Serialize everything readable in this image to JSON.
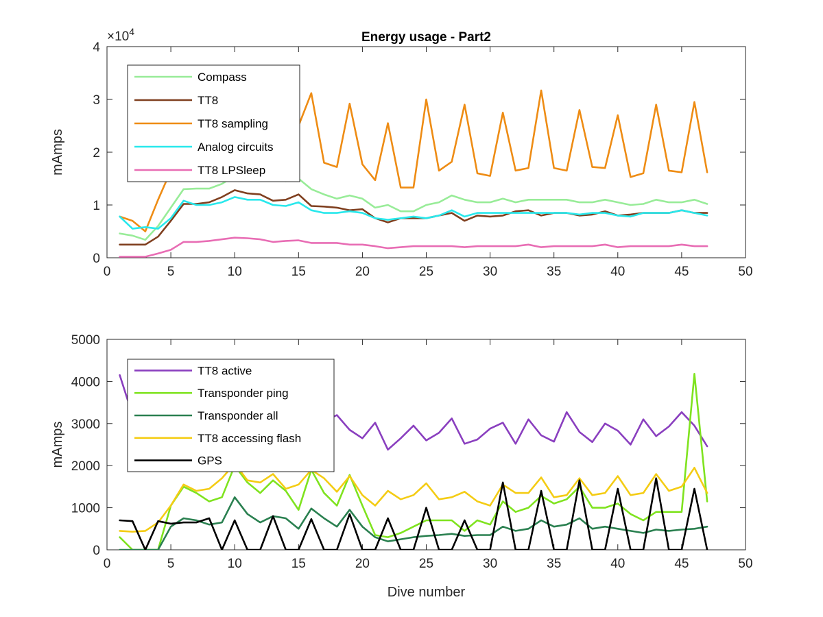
{
  "chart_data": [
    {
      "type": "line",
      "title": "Energy usage - Part2",
      "xlabel": "",
      "ylabel": "mAmps",
      "y_exponent_label": "×10",
      "y_exponent_power": "4",
      "xlim": [
        0,
        50
      ],
      "ylim": [
        0,
        4
      ],
      "xticks": [
        "0",
        "5",
        "10",
        "15",
        "20",
        "25",
        "30",
        "35",
        "40",
        "45",
        "50"
      ],
      "yticks": [
        "0",
        "1",
        "2",
        "3",
        "4"
      ],
      "grid": false,
      "legend_position": "top-left",
      "x": [
        1,
        2,
        3,
        4,
        5,
        6,
        7,
        8,
        9,
        10,
        11,
        12,
        13,
        14,
        15,
        16,
        17,
        18,
        19,
        20,
        21,
        22,
        23,
        24,
        25,
        26,
        27,
        28,
        29,
        30,
        31,
        32,
        33,
        34,
        35,
        36,
        37,
        38,
        39,
        40,
        41,
        42,
        43,
        44,
        45,
        46,
        47
      ],
      "series": [
        {
          "name": "Compass",
          "color": "#98ec98",
          "values": [
            0.46,
            0.42,
            0.34,
            0.6,
            0.95,
            1.3,
            1.31,
            1.31,
            1.4,
            1.55,
            1.5,
            1.55,
            1.5,
            1.45,
            1.5,
            1.3,
            1.2,
            1.12,
            1.18,
            1.12,
            0.95,
            1.0,
            0.88,
            0.88,
            1.0,
            1.05,
            1.18,
            1.1,
            1.05,
            1.05,
            1.12,
            1.05,
            1.1,
            1.1,
            1.1,
            1.1,
            1.05,
            1.05,
            1.1,
            1.05,
            1.0,
            1.02,
            1.1,
            1.05,
            1.05,
            1.1,
            1.02
          ]
        },
        {
          "name": "TT8",
          "color": "#7f3f1f",
          "values": [
            0.25,
            0.25,
            0.25,
            0.4,
            0.7,
            1.02,
            1.02,
            1.05,
            1.15,
            1.28,
            1.22,
            1.2,
            1.08,
            1.1,
            1.2,
            0.98,
            0.97,
            0.95,
            0.9,
            0.92,
            0.75,
            0.67,
            0.75,
            0.75,
            0.75,
            0.8,
            0.85,
            0.7,
            0.8,
            0.78,
            0.8,
            0.88,
            0.9,
            0.8,
            0.85,
            0.85,
            0.8,
            0.82,
            0.88,
            0.8,
            0.82,
            0.85,
            0.85,
            0.85,
            0.9,
            0.85,
            0.85
          ]
        },
        {
          "name": "TT8 sampling",
          "color": "#ee8c14",
          "values": [
            0.78,
            0.7,
            0.5,
            1.1,
            1.65,
            1.92,
            2.0,
            2.05,
            2.1,
            2.25,
            2.3,
            2.3,
            2.15,
            2.2,
            2.5,
            3.12,
            1.8,
            1.72,
            2.92,
            1.77,
            1.47,
            2.55,
            1.33,
            1.33,
            3.0,
            1.65,
            1.82,
            2.9,
            1.6,
            1.55,
            2.75,
            1.65,
            1.7,
            3.17,
            1.7,
            1.65,
            2.8,
            1.72,
            1.7,
            2.7,
            1.53,
            1.6,
            2.9,
            1.65,
            1.62,
            2.95,
            1.62
          ]
        },
        {
          "name": "Analog circuits",
          "color": "#29e8ec",
          "values": [
            0.78,
            0.55,
            0.58,
            0.55,
            0.75,
            1.08,
            1.0,
            1.0,
            1.05,
            1.15,
            1.1,
            1.1,
            1.0,
            0.98,
            1.05,
            0.9,
            0.85,
            0.85,
            0.88,
            0.85,
            0.75,
            0.72,
            0.75,
            0.78,
            0.75,
            0.8,
            0.9,
            0.78,
            0.85,
            0.85,
            0.85,
            0.85,
            0.85,
            0.85,
            0.85,
            0.85,
            0.82,
            0.85,
            0.85,
            0.8,
            0.78,
            0.85,
            0.85,
            0.85,
            0.9,
            0.85,
            0.8
          ]
        },
        {
          "name": "TT8 LPSleep",
          "color": "#e86db4",
          "values": [
            0.02,
            0.02,
            0.02,
            0.08,
            0.15,
            0.3,
            0.3,
            0.32,
            0.35,
            0.38,
            0.37,
            0.35,
            0.3,
            0.32,
            0.33,
            0.28,
            0.28,
            0.28,
            0.25,
            0.25,
            0.22,
            0.18,
            0.2,
            0.22,
            0.22,
            0.22,
            0.22,
            0.2,
            0.22,
            0.22,
            0.22,
            0.22,
            0.25,
            0.2,
            0.22,
            0.22,
            0.22,
            0.22,
            0.25,
            0.2,
            0.22,
            0.22,
            0.22,
            0.22,
            0.25,
            0.22,
            0.22
          ]
        }
      ]
    },
    {
      "type": "line",
      "title": "",
      "xlabel": "Dive number",
      "ylabel": "mAmps",
      "xlim": [
        0,
        50
      ],
      "ylim": [
        0,
        5000
      ],
      "xticks": [
        "0",
        "5",
        "10",
        "15",
        "20",
        "25",
        "30",
        "35",
        "40",
        "45",
        "50"
      ],
      "yticks": [
        "0",
        "1000",
        "2000",
        "3000",
        "4000",
        "5000"
      ],
      "grid": false,
      "legend_position": "top-left",
      "x": [
        1,
        2,
        3,
        4,
        5,
        6,
        7,
        8,
        9,
        10,
        11,
        12,
        13,
        14,
        15,
        16,
        17,
        18,
        19,
        20,
        21,
        22,
        23,
        24,
        25,
        26,
        27,
        28,
        29,
        30,
        31,
        32,
        33,
        34,
        35,
        36,
        37,
        38,
        39,
        40,
        41,
        42,
        43,
        44,
        45,
        46,
        47
      ],
      "series": [
        {
          "name": "TT8 active",
          "color": "#8a3fbf",
          "values": [
            4150,
            3200,
            3000,
            3100,
            3100,
            3150,
            3100,
            3050,
            3000,
            3100,
            3050,
            3000,
            3050,
            3100,
            3100,
            3050,
            3050,
            3200,
            2850,
            2650,
            3020,
            2380,
            2650,
            2950,
            2600,
            2780,
            3120,
            2520,
            2620,
            2880,
            3020,
            2520,
            3100,
            2720,
            2570,
            3270,
            2800,
            2560,
            3000,
            2830,
            2500,
            3100,
            2700,
            2930,
            3270,
            2950,
            2460
          ]
        },
        {
          "name": "Transponder ping",
          "color": "#7fe31f",
          "values": [
            300,
            0,
            0,
            0,
            1050,
            1500,
            1350,
            1150,
            1250,
            2000,
            1600,
            1350,
            1650,
            1400,
            950,
            1900,
            1350,
            1050,
            1780,
            1050,
            350,
            300,
            400,
            550,
            700,
            700,
            700,
            450,
            700,
            600,
            1150,
            900,
            1000,
            1280,
            1100,
            1200,
            1500,
            1000,
            1000,
            1100,
            850,
            700,
            900,
            900,
            900,
            4180,
            1150
          ]
        },
        {
          "name": "Transponder all",
          "color": "#2a8050",
          "values": [
            0,
            0,
            0,
            0,
            550,
            750,
            700,
            600,
            650,
            1250,
            850,
            650,
            800,
            750,
            500,
            980,
            750,
            550,
            950,
            550,
            300,
            200,
            250,
            300,
            330,
            350,
            380,
            330,
            350,
            350,
            550,
            450,
            500,
            700,
            550,
            600,
            750,
            500,
            550,
            500,
            450,
            400,
            480,
            450,
            480,
            500,
            550
          ]
        },
        {
          "name": "TT8 accessing flash",
          "color": "#f4cc14",
          "values": [
            450,
            430,
            450,
            650,
            1050,
            1550,
            1400,
            1450,
            1700,
            2050,
            1650,
            1600,
            1800,
            1450,
            1550,
            1900,
            1700,
            1380,
            1750,
            1300,
            1050,
            1400,
            1200,
            1300,
            1580,
            1200,
            1250,
            1380,
            1150,
            1050,
            1550,
            1350,
            1350,
            1720,
            1250,
            1300,
            1700,
            1300,
            1350,
            1750,
            1300,
            1350,
            1800,
            1400,
            1500,
            1950,
            1350
          ]
        },
        {
          "name": "GPS",
          "color": "#000000",
          "values": [
            700,
            680,
            0,
            680,
            620,
            650,
            650,
            750,
            0,
            700,
            0,
            0,
            800,
            0,
            0,
            730,
            0,
            0,
            850,
            0,
            0,
            750,
            0,
            0,
            1000,
            0,
            0,
            700,
            0,
            0,
            1600,
            0,
            0,
            1400,
            0,
            0,
            1650,
            0,
            0,
            1450,
            0,
            0,
            1700,
            0,
            0,
            1450,
            0
          ]
        }
      ]
    }
  ]
}
